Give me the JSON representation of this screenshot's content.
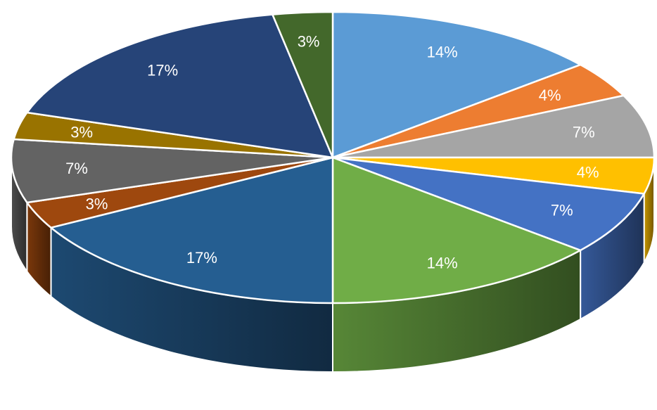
{
  "chart_data": {
    "type": "pie",
    "style": "3d",
    "title": "",
    "legend": "none",
    "start": "top, clockwise",
    "slices": [
      {
        "label": "14%",
        "value": 14,
        "color": "#5B9BD5"
      },
      {
        "label": "4%",
        "value": 4,
        "color": "#ED7D31"
      },
      {
        "label": "7%",
        "value": 7,
        "color": "#A5A5A5"
      },
      {
        "label": "4%",
        "value": 4,
        "color": "#FFC000"
      },
      {
        "label": "7%",
        "value": 7,
        "color": "#4472C4"
      },
      {
        "label": "14%",
        "value": 14,
        "color": "#70AD47"
      },
      {
        "label": "17%",
        "value": 17,
        "color": "#255E91"
      },
      {
        "label": "3%",
        "value": 3,
        "color": "#9E480E"
      },
      {
        "label": "7%",
        "value": 7,
        "color": "#636363"
      },
      {
        "label": "3%",
        "value": 3,
        "color": "#997300"
      },
      {
        "label": "17%",
        "value": 17,
        "color": "#264478"
      },
      {
        "label": "3%",
        "value": 3,
        "color": "#43682B"
      }
    ]
  }
}
